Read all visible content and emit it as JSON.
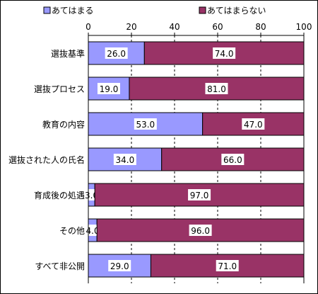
{
  "chart_data": {
    "type": "bar",
    "orientation": "horizontal",
    "stacked": true,
    "categories": [
      "選抜基準",
      "選抜プロセス",
      "教育の内容",
      "選抜された人の氏名",
      "育成後の処遇",
      "その他",
      "すべて非公開"
    ],
    "series": [
      {
        "name": "あてはまる",
        "values": [
          26.0,
          19.0,
          53.0,
          34.0,
          3.0,
          4.0,
          29.0
        ],
        "color": "#9999ff"
      },
      {
        "name": "あてはまらない",
        "values": [
          74.0,
          81.0,
          47.0,
          66.0,
          97.0,
          96.0,
          71.0
        ],
        "color": "#993366"
      }
    ],
    "xlim": [
      0,
      100
    ],
    "xticks": [
      0,
      20,
      40,
      60,
      80,
      100
    ],
    "grid": "vertical dashed",
    "legend": "top",
    "data_labels": true
  }
}
